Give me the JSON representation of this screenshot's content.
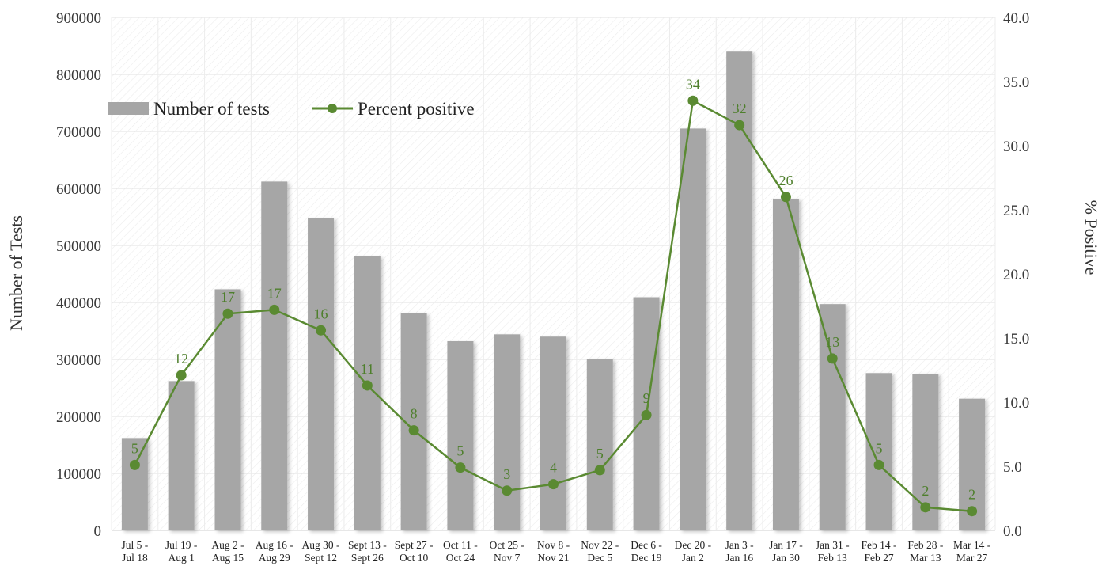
{
  "chart_data": {
    "type": "bar+line",
    "categories": [
      [
        "Jul 5 -",
        "Jul 18"
      ],
      [
        "Jul 19 -",
        "Aug 1"
      ],
      [
        "Aug 2 -",
        "Aug 15"
      ],
      [
        "Aug 16 -",
        "Aug 29"
      ],
      [
        "Aug 30 -",
        "Sept 12"
      ],
      [
        "Sept 13 -",
        "Sept 26"
      ],
      [
        "Sept 27 -",
        "Oct 10"
      ],
      [
        "Oct 11 -",
        "Oct 24"
      ],
      [
        "Oct 25 -",
        "Nov 7"
      ],
      [
        "Nov 8 -",
        "Nov 21"
      ],
      [
        "Nov 22 -",
        "Dec 5"
      ],
      [
        "Dec 6 -",
        "Dec 19"
      ],
      [
        "Dec 20 -",
        "Jan 2"
      ],
      [
        "Jan 3 -",
        "Jan 16"
      ],
      [
        "Jan 17 -",
        "Jan 30"
      ],
      [
        "Jan 31 -",
        "Feb 13"
      ],
      [
        "Feb 14 -",
        "Feb 27"
      ],
      [
        "Feb 28 -",
        "Mar 13"
      ],
      [
        "Mar 14 -",
        "Mar 27"
      ]
    ],
    "series": [
      {
        "name": "Number of tests",
        "type": "bar",
        "axis": "left",
        "color": "#a6a6a6",
        "values": [
          162000,
          262000,
          423000,
          612000,
          548000,
          481000,
          381000,
          332000,
          344000,
          340000,
          301000,
          409000,
          705000,
          840000,
          582000,
          397000,
          276000,
          275000,
          231000
        ]
      },
      {
        "name": "Percent positive",
        "type": "line",
        "axis": "right",
        "color": "#5a8a32",
        "values": [
          5.1,
          12.1,
          16.9,
          17.2,
          15.6,
          11.3,
          7.8,
          4.9,
          3.1,
          3.6,
          4.7,
          9.0,
          33.5,
          31.6,
          26.0,
          13.4,
          5.1,
          1.8,
          1.5
        ],
        "data_labels": [
          "5",
          "12",
          "17",
          "17",
          "16",
          "11",
          "8",
          "5",
          "3",
          "4",
          "5",
          "9",
          "34",
          "32",
          "26",
          "13",
          "5",
          "2",
          "2"
        ]
      }
    ],
    "y_left": {
      "label": "Number of Tests",
      "range": [
        0,
        900000
      ],
      "ticks": [
        "0",
        "100000",
        "200000",
        "300000",
        "400000",
        "500000",
        "600000",
        "700000",
        "800000",
        "900000"
      ]
    },
    "y_right": {
      "label": "% Positive",
      "range": [
        0,
        40
      ],
      "ticks": [
        "0.0",
        "5.0",
        "10.0",
        "15.0",
        "20.0",
        "25.0",
        "30.0",
        "35.0",
        "40.0"
      ]
    },
    "legend": {
      "position": "top-left",
      "items": [
        "Number of tests",
        "Percent positive"
      ]
    },
    "grid": true
  }
}
